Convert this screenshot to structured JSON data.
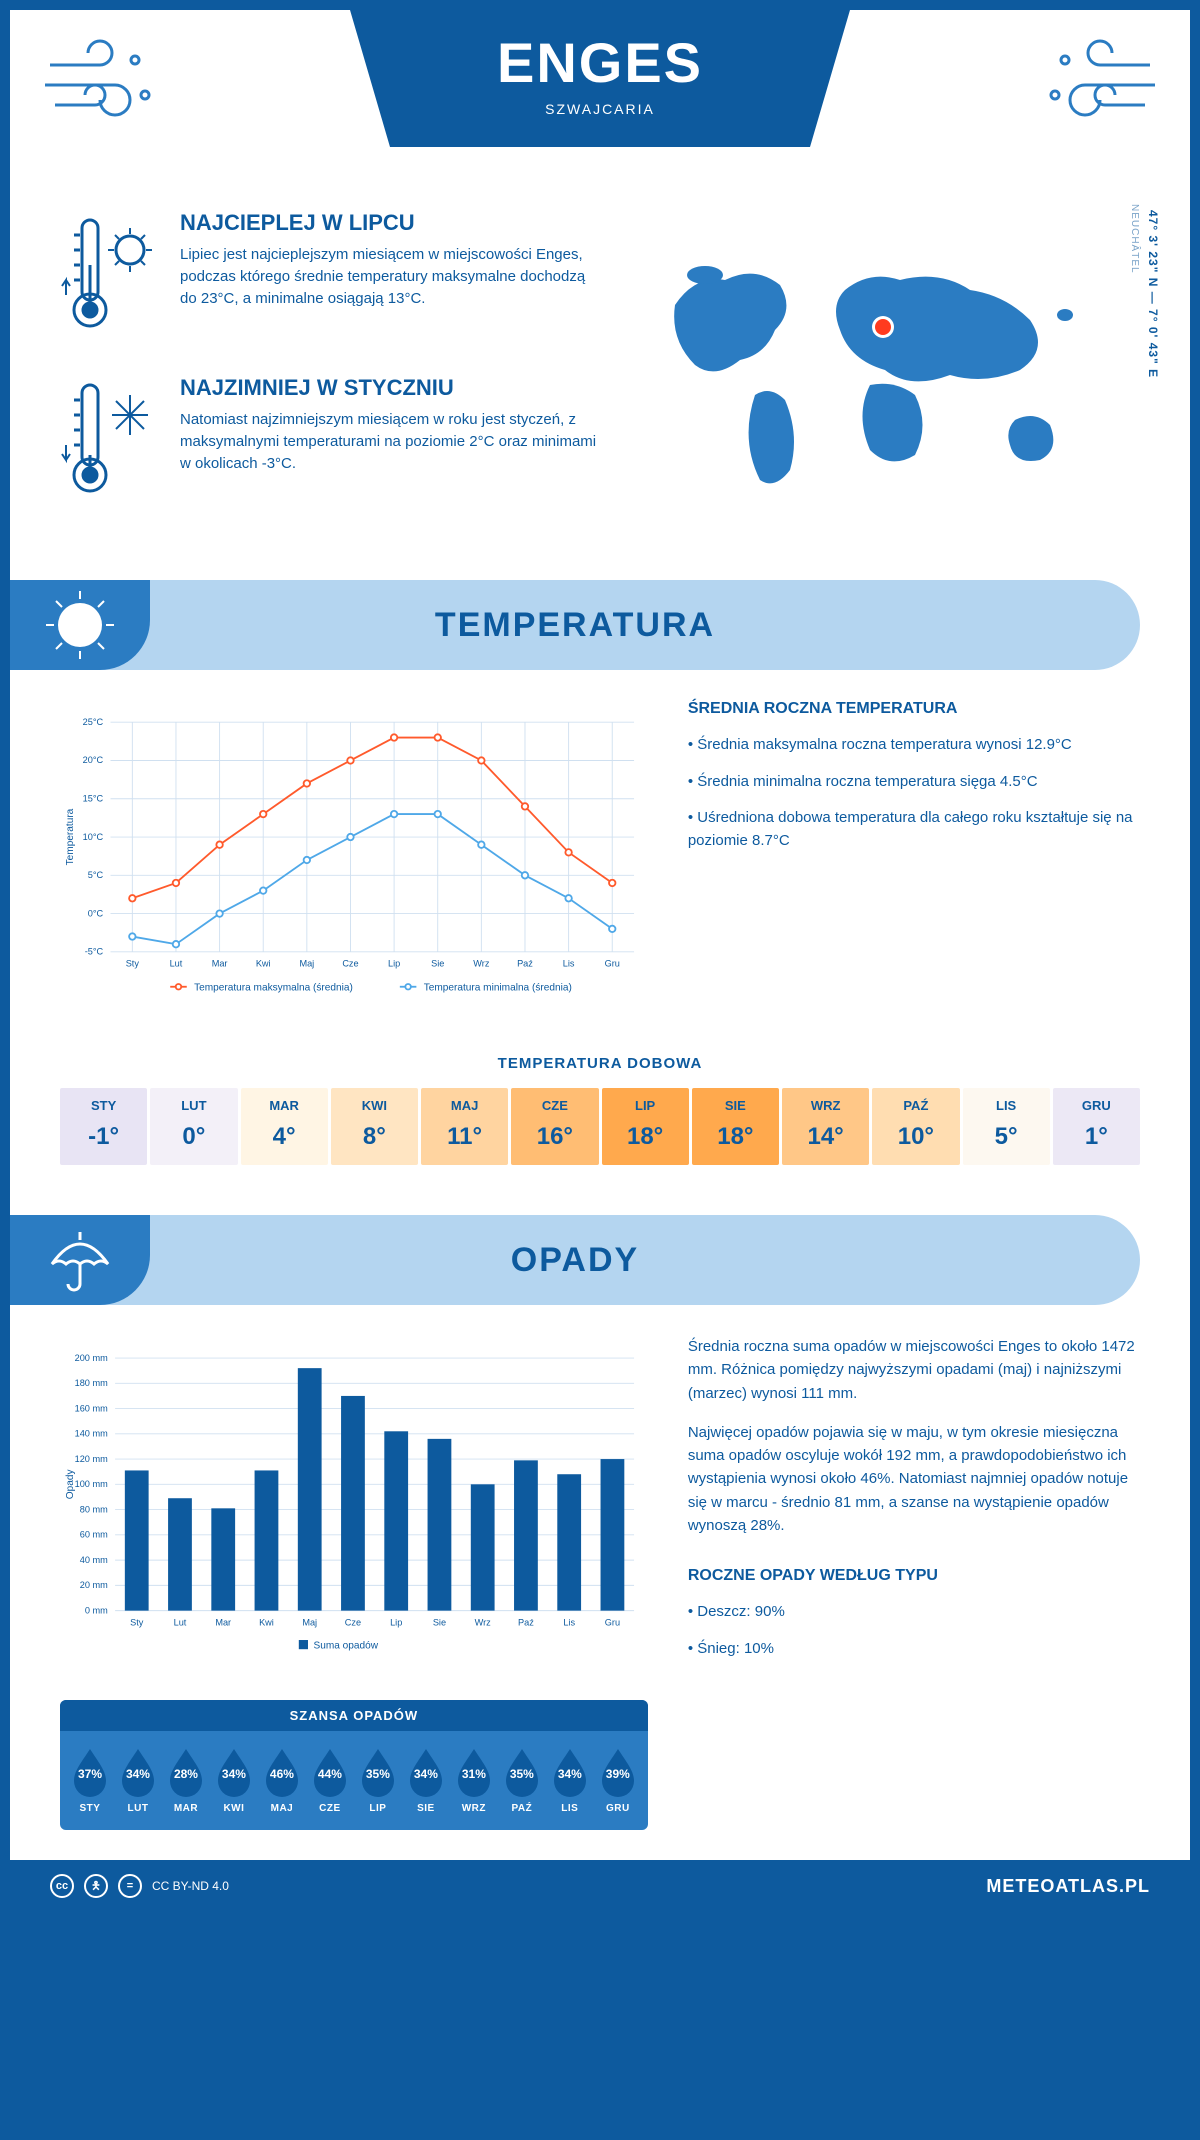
{
  "header": {
    "title": "ENGES",
    "subtitle": "SZWAJCARIA"
  },
  "location": {
    "region": "NEUCHÂTEL",
    "coords": "47° 3' 23\" N — 7° 0' 43\" E"
  },
  "intro": {
    "hot": {
      "title": "NAJCIEPLEJ W LIPCU",
      "text": "Lipiec jest najcieplejszym miesiącem w miejscowości Enges, podczas którego średnie temperatury maksymalne dochodzą do 23°C, a minimalne osiągają 13°C."
    },
    "cold": {
      "title": "NAJZIMNIEJ W STYCZNIU",
      "text": "Natomiast najzimniejszym miesiącem w roku jest styczeń, z maksymalnymi temperaturami na poziomie 2°C oraz minimami w okolicach -3°C."
    }
  },
  "temperature": {
    "section_title": "TEMPERATURA",
    "annual_title": "ŚREDNIA ROCZNA TEMPERATURA",
    "bullets": [
      "Średnia maksymalna roczna temperatura wynosi 12.9°C",
      "Średnia minimalna roczna temperatura sięga 4.5°C",
      "Uśredniona dobowa temperatura dla całego roku kształtuje się na poziomie 8.7°C"
    ],
    "months": [
      "Sty",
      "Lut",
      "Mar",
      "Kwi",
      "Maj",
      "Cze",
      "Lip",
      "Sie",
      "Wrz",
      "Paź",
      "Lis",
      "Gru"
    ],
    "months_upper": [
      "STY",
      "LUT",
      "MAR",
      "KWI",
      "MAJ",
      "CZE",
      "LIP",
      "SIE",
      "WRZ",
      "PAŹ",
      "LIS",
      "GRU"
    ],
    "max_series": [
      2,
      4,
      9,
      13,
      17,
      20,
      23,
      23,
      20,
      14,
      8,
      4
    ],
    "min_series": [
      -3,
      -4,
      0,
      3,
      7,
      10,
      13,
      13,
      9,
      5,
      2,
      -2
    ],
    "y_ticks": [
      -5,
      0,
      5,
      10,
      15,
      20,
      25
    ],
    "y_tick_labels": [
      "-5°C",
      "0°C",
      "5°C",
      "10°C",
      "15°C",
      "20°C",
      "25°C"
    ],
    "x_axis_label": "",
    "y_axis_label": "Temperatura",
    "legend_max": "Temperatura maksymalna (średnia)",
    "legend_min": "Temperatura minimalna (średnia)",
    "colors": {
      "max": "#ff5a2c",
      "min": "#4fa8e8",
      "grid": "#d0e0f0"
    },
    "daily_title": "TEMPERATURA DOBOWA",
    "daily_values": [
      "-1°",
      "0°",
      "4°",
      "8°",
      "11°",
      "16°",
      "18°",
      "18°",
      "14°",
      "10°",
      "5°",
      "1°"
    ],
    "daily_colors": [
      "#e8e4f4",
      "#f3f0f8",
      "#fff5e4",
      "#ffe5c2",
      "#ffd4a0",
      "#ffbd73",
      "#ffa94d",
      "#ffa94d",
      "#ffc787",
      "#ffddb1",
      "#fdf8f0",
      "#ece8f5"
    ]
  },
  "precip": {
    "section_title": "OPADY",
    "para1": "Średnia roczna suma opadów w miejscowości Enges to około 1472 mm. Różnica pomiędzy najwyższymi opadami (maj) i najniższymi (marzec) wynosi 111 mm.",
    "para2": "Najwięcej opadów pojawia się w maju, w tym okresie miesięczna suma opadów oscyluje wokół 192 mm, a prawdopodobieństwo ich wystąpienia wynosi około 46%. Natomiast najmniej opadów notuje się w marcu - średnio 81 mm, a szanse na wystąpienie opadów wynoszą 28%.",
    "months": [
      "Sty",
      "Lut",
      "Mar",
      "Kwi",
      "Maj",
      "Cze",
      "Lip",
      "Sie",
      "Wrz",
      "Paź",
      "Lis",
      "Gru"
    ],
    "values": [
      111,
      89,
      81,
      111,
      192,
      170,
      142,
      136,
      100,
      119,
      108,
      120
    ],
    "y_ticks": [
      0,
      20,
      40,
      60,
      80,
      100,
      120,
      140,
      160,
      180,
      200
    ],
    "y_tick_labels": [
      "0 mm",
      "20 mm",
      "40 mm",
      "60 mm",
      "80 mm",
      "100 mm",
      "120 mm",
      "140 mm",
      "160 mm",
      "180 mm",
      "200 mm"
    ],
    "y_axis_label": "Opady",
    "legend": "Suma opadów",
    "bar_color": "#0d5a9e",
    "chance_title": "SZANSA OPADÓW",
    "chance_values": [
      "37%",
      "34%",
      "28%",
      "34%",
      "46%",
      "44%",
      "35%",
      "34%",
      "31%",
      "35%",
      "34%",
      "39%"
    ],
    "type_title": "ROCZNE OPADY WEDŁUG TYPU",
    "type_bullets": [
      "Deszcz: 90%",
      "Śnieg: 10%"
    ],
    "drop_color": "#0d5a9e"
  },
  "footer": {
    "license": "CC BY-ND 4.0",
    "site": "METEOATLAS.PL"
  }
}
